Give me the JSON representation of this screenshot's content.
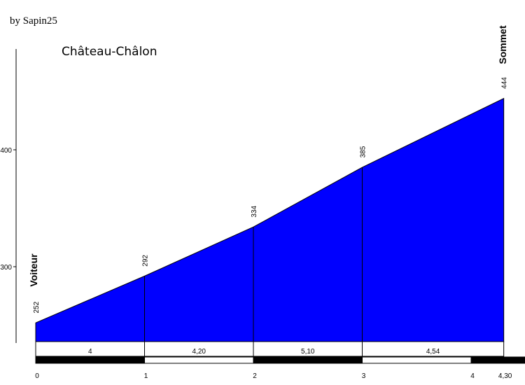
{
  "credit": "by Sapin25",
  "chart_data": {
    "type": "area",
    "title": "Château-Châlon",
    "x": [
      0,
      1,
      2,
      3,
      4.3
    ],
    "y": [
      252,
      292,
      334,
      385,
      444
    ],
    "elevation_labels": [
      "252",
      "292",
      "334",
      "385",
      "444"
    ],
    "ylim": [
      235,
      470
    ],
    "yticks": [
      300,
      400
    ],
    "ytick_labels": [
      "300",
      "400"
    ],
    "xticks": [
      0,
      1,
      2,
      3,
      4,
      4.3
    ],
    "xtick_labels": [
      "0",
      "1",
      "2",
      "3",
      "4",
      "4,30"
    ],
    "segments": [
      {
        "from": 0,
        "to": 1,
        "gradient": "4"
      },
      {
        "from": 1,
        "to": 2,
        "gradient": "4,20"
      },
      {
        "from": 2,
        "to": 3,
        "gradient": "5,10"
      },
      {
        "from": 3,
        "to": 4.3,
        "gradient": "4,54"
      }
    ],
    "start_label": "Voiteur",
    "end_label": "Sommet",
    "fill_color": "#0000ff"
  }
}
